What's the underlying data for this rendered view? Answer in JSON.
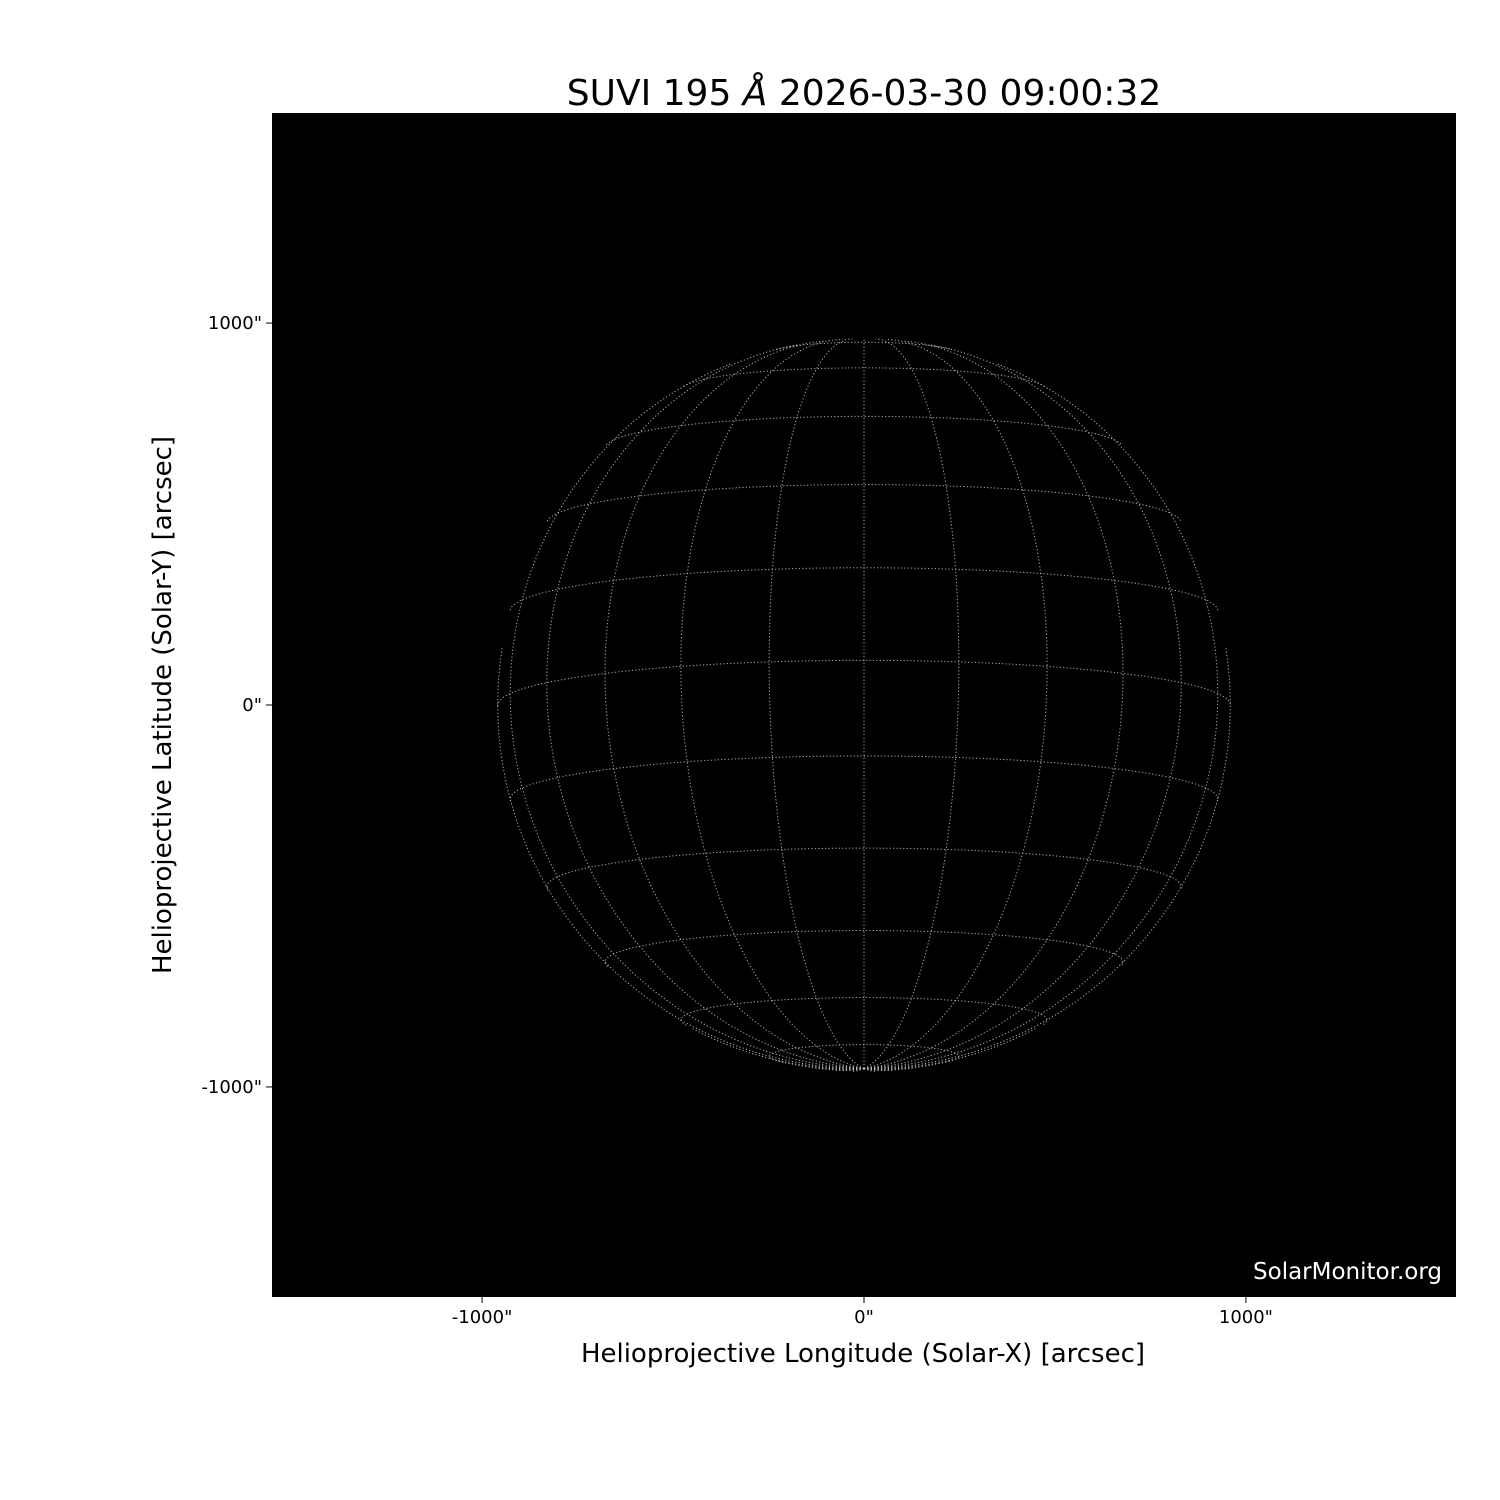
{
  "chart_data": {
    "type": "image",
    "title": "SUVI 195 Å 2026-03-30 09:00:32",
    "title_parts": {
      "prefix": "SUVI 195 ",
      "unit": "Å",
      "suffix": " 2026-03-30 09:00:32"
    },
    "xlabel": "Helioprojective Longitude (Solar-X) [arcsec]",
    "ylabel": "Helioprojective Latitude (Solar-Y) [arcsec]",
    "xlim": [
      -1550,
      1550
    ],
    "ylim": [
      -1550,
      1550
    ],
    "xticks": [
      {
        "value": -1000,
        "label": "-1000\""
      },
      {
        "value": 0,
        "label": "0\""
      },
      {
        "value": 1000,
        "label": "1000\""
      }
    ],
    "yticks": [
      {
        "value": 1000,
        "label": "1000\""
      },
      {
        "value": 0,
        "label": "0\""
      },
      {
        "value": -1000,
        "label": "-1000\""
      }
    ],
    "background_color": "#000000",
    "grid": {
      "type": "heliographic",
      "spacing_deg": 15,
      "style": "dotted",
      "color": "#cccccc"
    },
    "watermark": "SolarMonitor.org"
  }
}
